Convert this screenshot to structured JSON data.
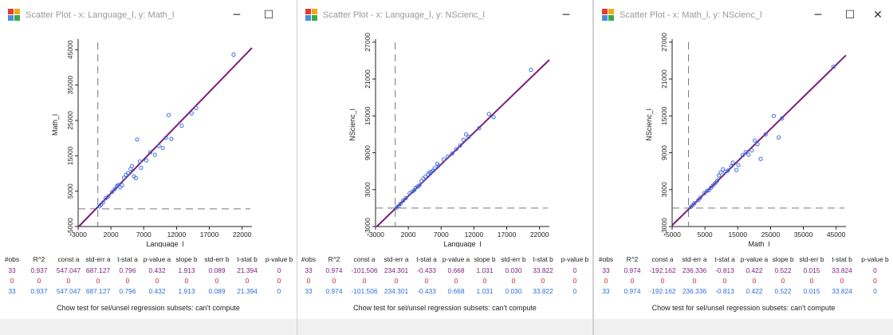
{
  "colors": {
    "fit_line": "#7b1e7b",
    "points": "#3b6fe0",
    "row_all": "#7b1e7b",
    "row_selected": "#d22323",
    "row_unselected": "#2f6fd6"
  },
  "windows": [
    {
      "title": "Scatter Plot - x: Language_l, y: Math_l",
      "controls": [
        "─",
        "☐"
      ],
      "chart_data": {
        "type": "scatter",
        "xlabel": "Language_l",
        "ylabel": "Math_l",
        "x_ticks": [
          -3000,
          2000,
          7000,
          12000,
          17000,
          22000
        ],
        "y_ticks": [
          -5000,
          5000,
          15000,
          25000,
          35000,
          45000
        ],
        "xlim": [
          -3000,
          23500
        ],
        "ylim": [
          -5000,
          48000
        ],
        "x_zero_line": 0,
        "y_zero_line": 0,
        "regression": {
          "intercept": 547.047,
          "slope": 1.913
        },
        "points": [
          [
            250,
            700
          ],
          [
            500,
            1200
          ],
          [
            800,
            1800
          ],
          [
            1200,
            3000
          ],
          [
            1600,
            3500
          ],
          [
            2200,
            4800
          ],
          [
            2600,
            5600
          ],
          [
            2900,
            6400
          ],
          [
            3100,
            6800
          ],
          [
            3400,
            6100
          ],
          [
            3700,
            6700
          ],
          [
            4000,
            8800
          ],
          [
            4300,
            9600
          ],
          [
            4600,
            10100
          ],
          [
            5000,
            11300
          ],
          [
            5200,
            12100
          ],
          [
            5500,
            9200
          ],
          [
            5800,
            8700
          ],
          [
            6000,
            19600
          ],
          [
            6400,
            13400
          ],
          [
            6600,
            11600
          ],
          [
            7400,
            13700
          ],
          [
            8000,
            16000
          ],
          [
            8700,
            15300
          ],
          [
            9300,
            17800
          ],
          [
            9900,
            17200
          ],
          [
            10400,
            20100
          ],
          [
            10800,
            26500
          ],
          [
            11200,
            19800
          ],
          [
            12800,
            23500
          ],
          [
            14300,
            27000
          ],
          [
            15000,
            28500
          ],
          [
            20700,
            43600
          ]
        ]
      },
      "stats": {
        "headers": [
          "#obs",
          "R^2",
          "const a",
          "std-err a",
          "t-stat a",
          "p-value a",
          "slope b",
          "std-err b",
          "t-stat b",
          "p-value b"
        ],
        "rows": [
          [
            "33",
            "0.937",
            "547.047",
            "687.127",
            "0.796",
            "0.432",
            "1.913",
            "0.089",
            "21.394",
            "0"
          ],
          [
            "0",
            "0",
            "0",
            "0",
            "0",
            "0",
            "0",
            "0",
            "0",
            "0"
          ],
          [
            "33",
            "0.937",
            "547.047",
            "687.127",
            "0.796",
            "0.432",
            "1.913",
            "0.089",
            "21.394",
            "0"
          ]
        ]
      },
      "chow": "Chow test for sel/unsel regression subsets: can't compute"
    },
    {
      "title": "Scatter Plot - x: Language_l, y: NScienc_l",
      "controls": [
        "─"
      ],
      "chart_data": {
        "type": "scatter",
        "xlabel": "Language_l",
        "ylabel": "NScienc_l",
        "x_ticks": [
          -3000,
          2000,
          7000,
          12000,
          17000,
          22000
        ],
        "y_ticks": [
          -3000,
          3000,
          9000,
          15000,
          21000,
          27000
        ],
        "xlim": [
          -3000,
          23500
        ],
        "ylim": [
          -3000,
          27500
        ],
        "x_zero_line": 0,
        "y_zero_line": 0,
        "regression": {
          "intercept": -101.506,
          "slope": 1.031
        },
        "points": [
          [
            250,
            100
          ],
          [
            500,
            300
          ],
          [
            800,
            700
          ],
          [
            1200,
            1200
          ],
          [
            1600,
            1600
          ],
          [
            2200,
            2400
          ],
          [
            2600,
            2700
          ],
          [
            2900,
            2900
          ],
          [
            3100,
            3300
          ],
          [
            3400,
            3500
          ],
          [
            3700,
            3700
          ],
          [
            4000,
            4400
          ],
          [
            4300,
            4800
          ],
          [
            4600,
            5100
          ],
          [
            5000,
            5500
          ],
          [
            5200,
            5800
          ],
          [
            5500,
            5900
          ],
          [
            5800,
            6100
          ],
          [
            6000,
            6500
          ],
          [
            6400,
            7200
          ],
          [
            6600,
            6900
          ],
          [
            7400,
            7900
          ],
          [
            8000,
            8400
          ],
          [
            8700,
            8900
          ],
          [
            9300,
            9600
          ],
          [
            9900,
            10200
          ],
          [
            10400,
            11100
          ],
          [
            10800,
            12000
          ],
          [
            11200,
            11600
          ],
          [
            12800,
            13000
          ],
          [
            14300,
            15300
          ],
          [
            15000,
            14800
          ],
          [
            20700,
            22500
          ]
        ]
      },
      "stats": {
        "headers": [
          "#obs",
          "R^2",
          "const a",
          "std-err a",
          "t-stat a",
          "p-value a",
          "slope b",
          "std-err b",
          "t-stat b",
          "p-value b"
        ],
        "rows": [
          [
            "33",
            "0.974",
            "-101.506",
            "234.301",
            "-0.433",
            "0.668",
            "1.031",
            "0.030",
            "33.822",
            "0"
          ],
          [
            "0",
            "0",
            "0",
            "0",
            "0",
            "0",
            "0",
            "0",
            "0",
            "0"
          ],
          [
            "33",
            "0.974",
            "-101.506",
            "234.301",
            "-0.433",
            "0.668",
            "1.031",
            "0.030",
            "33.822",
            "0"
          ]
        ]
      },
      "chow": "Chow test for sel/unsel regression subsets: can't compute"
    },
    {
      "title": "Scatter Plot - x: Math_l, y: NScienc_l",
      "controls": [
        "─",
        "☐",
        "✕"
      ],
      "chart_data": {
        "type": "scatter",
        "xlabel": "Math_l",
        "ylabel": "NScienc_l",
        "x_ticks": [
          -5000,
          5000,
          15000,
          25000,
          35000,
          45000
        ],
        "y_ticks": [
          -3000,
          3000,
          9000,
          15000,
          21000,
          27000
        ],
        "xlim": [
          -5000,
          48000
        ],
        "ylim": [
          -3000,
          27500
        ],
        "x_zero_line": 0,
        "y_zero_line": 0,
        "regression": {
          "intercept": -192.162,
          "slope": 0.522
        },
        "points": [
          [
            700,
            200
          ],
          [
            1300,
            500
          ],
          [
            1800,
            800
          ],
          [
            3000,
            1300
          ],
          [
            3600,
            1700
          ],
          [
            4800,
            2400
          ],
          [
            5600,
            2800
          ],
          [
            6200,
            2900
          ],
          [
            6800,
            3300
          ],
          [
            7500,
            3700
          ],
          [
            8200,
            4100
          ],
          [
            8800,
            4500
          ],
          [
            9200,
            5300
          ],
          [
            9800,
            5800
          ],
          [
            10500,
            6300
          ],
          [
            11200,
            5900
          ],
          [
            12000,
            6100
          ],
          [
            13000,
            6800
          ],
          [
            13500,
            7400
          ],
          [
            14600,
            6200
          ],
          [
            15200,
            7000
          ],
          [
            16500,
            8600
          ],
          [
            17400,
            9100
          ],
          [
            18300,
            8700
          ],
          [
            19300,
            9400
          ],
          [
            20200,
            11000
          ],
          [
            21000,
            10400
          ],
          [
            22000,
            8000
          ],
          [
            23500,
            12000
          ],
          [
            26000,
            15000
          ],
          [
            27500,
            11500
          ],
          [
            28500,
            14600
          ],
          [
            44200,
            23000
          ]
        ]
      },
      "stats": {
        "headers": [
          "#obs",
          "R^2",
          "const a",
          "std-err a",
          "t-stat a",
          "p-value a",
          "slope b",
          "std-err b",
          "t-stat b",
          "p-value b"
        ],
        "rows": [
          [
            "33",
            "0.974",
            "-192.162",
            "236.336",
            "-0.813",
            "0.422",
            "0.522",
            "0.015",
            "33.824",
            "0"
          ],
          [
            "0",
            "0",
            "0",
            "0",
            "0",
            "0",
            "0",
            "0",
            "0",
            "0"
          ],
          [
            "33",
            "0.974",
            "-192.162",
            "236.336",
            "-0.813",
            "0.422",
            "0.522",
            "0.015",
            "33.824",
            "0"
          ]
        ]
      },
      "chow": "Chow test for sel/unsel regression subsets: can't compute"
    }
  ]
}
